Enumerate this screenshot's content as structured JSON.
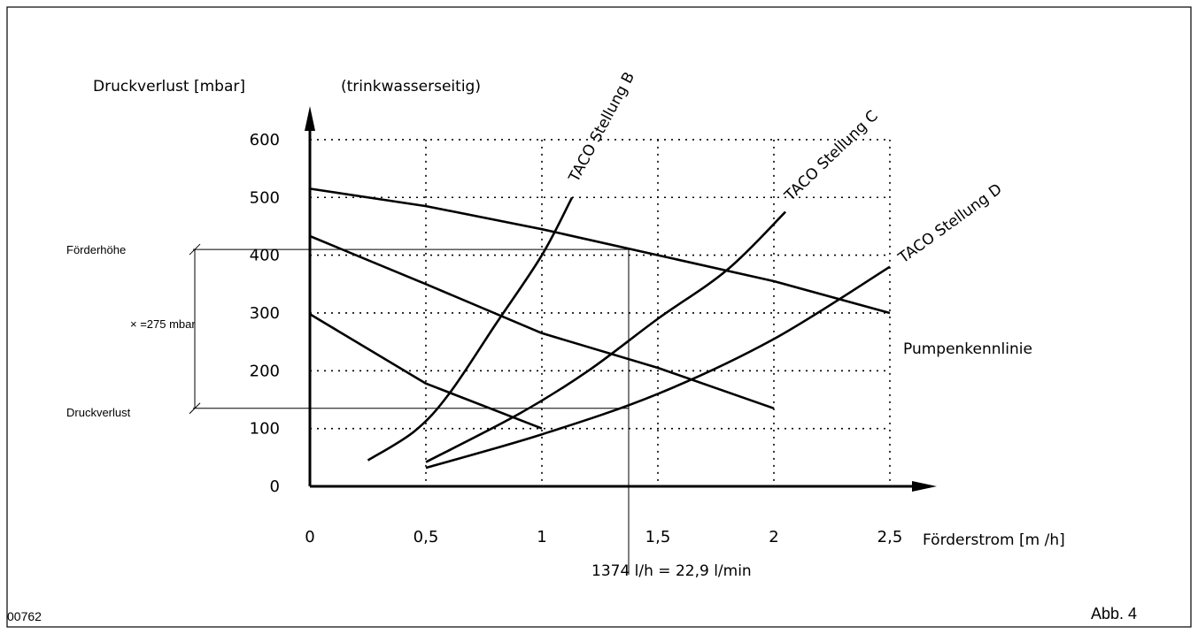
{
  "chart_data": {
    "type": "line",
    "title": "",
    "ylabel": "Druckverlust [mbar]",
    "ylabel_note": "(trinkwasserseitig)",
    "xlabel": "Förderstrom [m /h]",
    "xlim": [
      0,
      2.5
    ],
    "ylim": [
      0,
      600
    ],
    "x_ticks": [
      0,
      0.5,
      1,
      1.5,
      2,
      2.5
    ],
    "x_tick_labels": [
      "0",
      "0,5",
      "1",
      "1,5",
      "2",
      "2,5"
    ],
    "y_ticks": [
      0,
      100,
      200,
      300,
      400,
      500,
      600
    ],
    "y_tick_labels": [
      "0",
      "100",
      "200",
      "300",
      "400",
      "500",
      "600"
    ],
    "grid": true,
    "pump_curves": [
      {
        "points": [
          [
            0,
            515
          ],
          [
            0.5,
            485
          ],
          [
            1,
            445
          ],
          [
            1.5,
            400
          ],
          [
            2,
            355
          ],
          [
            2.5,
            300
          ]
        ]
      },
      {
        "points": [
          [
            0,
            433
          ],
          [
            0.5,
            350
          ],
          [
            1,
            265
          ],
          [
            1.5,
            205
          ],
          [
            2,
            135
          ]
        ]
      },
      {
        "points": [
          [
            0,
            298
          ],
          [
            0.5,
            178
          ],
          [
            1,
            100
          ]
        ]
      }
    ],
    "taco_curves": [
      {
        "label": "TACO Stellung B",
        "points": [
          [
            0.25,
            45
          ],
          [
            0.45,
            95
          ],
          [
            0.6,
            160
          ],
          [
            0.8,
            280
          ],
          [
            1,
            400
          ],
          [
            1.13,
            500
          ]
        ]
      },
      {
        "label": "TACO Stellung C",
        "points": [
          [
            0.5,
            42
          ],
          [
            0.9,
            125
          ],
          [
            1.2,
            200
          ],
          [
            1.5,
            290
          ],
          [
            1.8,
            375
          ],
          [
            2.05,
            475
          ]
        ]
      },
      {
        "label": "TACO Stellung D",
        "points": [
          [
            0.5,
            32
          ],
          [
            1,
            90
          ],
          [
            1.5,
            160
          ],
          [
            2,
            255
          ],
          [
            2.5,
            380
          ]
        ]
      }
    ],
    "pump_label": "Pumpenkennlinie",
    "operating_point": {
      "flow_x": 1.374,
      "head_y": 410,
      "loss_y": 135,
      "head_label": "Förderhöhe",
      "loss_label": "Druckverlust",
      "delta_label": "× =275 mbar",
      "flow_label": "1374 l/h  =   22,9 l/min"
    },
    "corner_left": "00762",
    "corner_right": "Abb. 4"
  }
}
